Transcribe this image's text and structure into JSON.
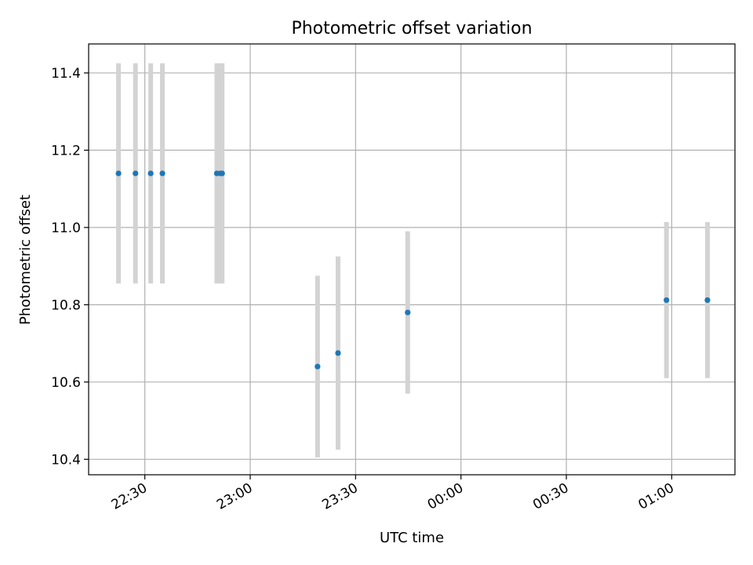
{
  "chart_data": {
    "type": "scatter",
    "title": "Photometric offset variation",
    "xlabel": "UTC time",
    "ylabel": "Photometric offset",
    "x_axis_type": "time",
    "xlim": [
      "22:14",
      "01:18"
    ],
    "ylim": [
      10.36,
      11.475
    ],
    "x_ticks": [
      "22:30",
      "23:00",
      "23:30",
      "00:00",
      "00:30",
      "01:00"
    ],
    "y_ticks": [
      "10.4",
      "10.6",
      "10.8",
      "11.0",
      "11.2",
      "11.4"
    ],
    "grid": true,
    "marker_color": "#1f77b4",
    "errorbar_color": "#d3d3d3",
    "points": [
      {
        "time": "22:22:30",
        "value": 11.14,
        "error": 0.285
      },
      {
        "time": "22:27:20",
        "value": 11.14,
        "error": 0.285
      },
      {
        "time": "22:31:40",
        "value": 11.14,
        "error": 0.285
      },
      {
        "time": "22:35:00",
        "value": 11.14,
        "error": 0.285
      },
      {
        "time": "22:50:30",
        "value": 11.14,
        "error": 0.285
      },
      {
        "time": "22:51:30",
        "value": 11.14,
        "error": 0.285
      },
      {
        "time": "22:52:00",
        "value": 11.14,
        "error": 0.285
      },
      {
        "time": "23:19:10",
        "value": 10.64,
        "error": 0.235
      },
      {
        "time": "23:25:00",
        "value": 10.675,
        "error": 0.25
      },
      {
        "time": "23:44:50",
        "value": 10.78,
        "error": 0.21
      },
      {
        "time": "00:58:30",
        "value": 10.812,
        "error": 0.202
      },
      {
        "time": "01:10:10",
        "value": 10.812,
        "error": 0.202
      }
    ]
  }
}
